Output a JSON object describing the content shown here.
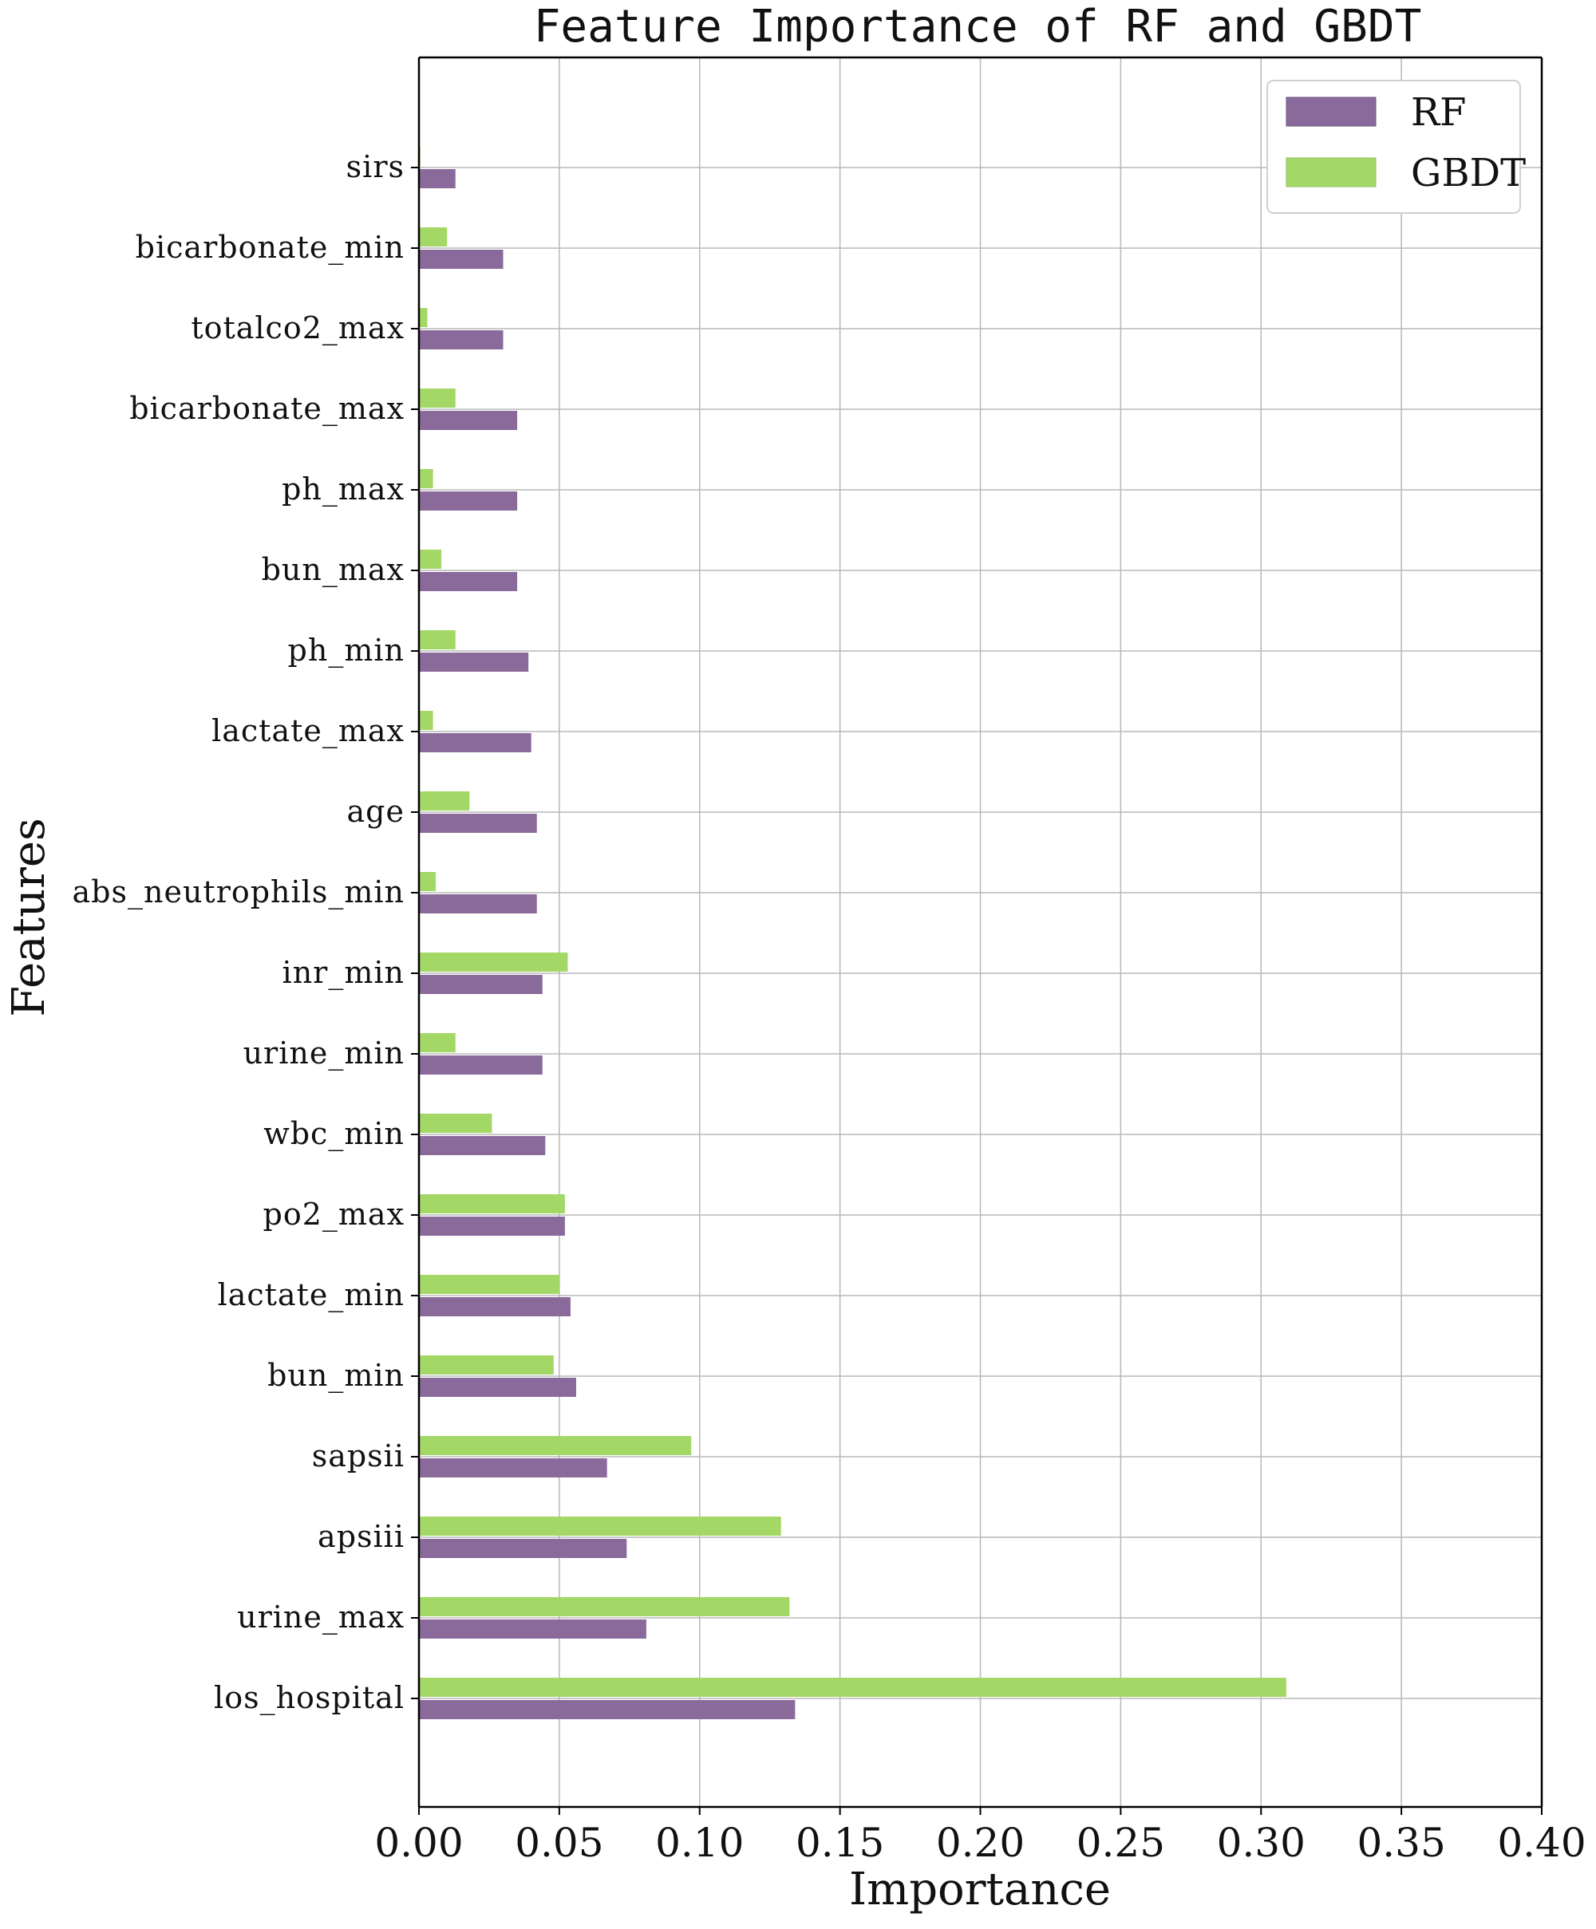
{
  "chart_data": {
    "type": "bar",
    "orientation": "horizontal",
    "title": "Feature Importance of RF and GBDT",
    "xlabel": "Importance",
    "ylabel": "Features",
    "xlim": [
      0,
      0.4
    ],
    "xticks": [
      "0.00",
      "0.05",
      "0.10",
      "0.15",
      "0.20",
      "0.25",
      "0.30",
      "0.35",
      "0.40"
    ],
    "xtick_values": [
      0,
      0.05,
      0.1,
      0.15,
      0.2,
      0.25,
      0.3,
      0.35,
      0.4
    ],
    "grid": true,
    "legend_position": "top-right",
    "categories": [
      "sirs",
      "bicarbonate_min",
      "totalco2_max",
      "bicarbonate_max",
      "ph_max",
      "bun_max",
      "ph_min",
      "lactate_max",
      "age",
      "abs_neutrophils_min",
      "inr_min",
      "urine_min",
      "wbc_min",
      "po2_max",
      "lactate_min",
      "bun_min",
      "sapsii",
      "apsiii",
      "urine_max",
      "los_hospital"
    ],
    "series": [
      {
        "name": "RF",
        "color": "#8a6a9a",
        "values": [
          0.013,
          0.03,
          0.03,
          0.035,
          0.035,
          0.035,
          0.039,
          0.04,
          0.042,
          0.042,
          0.044,
          0.044,
          0.045,
          0.052,
          0.054,
          0.056,
          0.067,
          0.074,
          0.081,
          0.134
        ]
      },
      {
        "name": "GBDT",
        "color": "#a3d866",
        "values": [
          0.0005,
          0.01,
          0.003,
          0.013,
          0.005,
          0.008,
          0.013,
          0.005,
          0.018,
          0.006,
          0.053,
          0.013,
          0.026,
          0.052,
          0.05,
          0.048,
          0.097,
          0.129,
          0.132,
          0.309
        ]
      }
    ]
  }
}
